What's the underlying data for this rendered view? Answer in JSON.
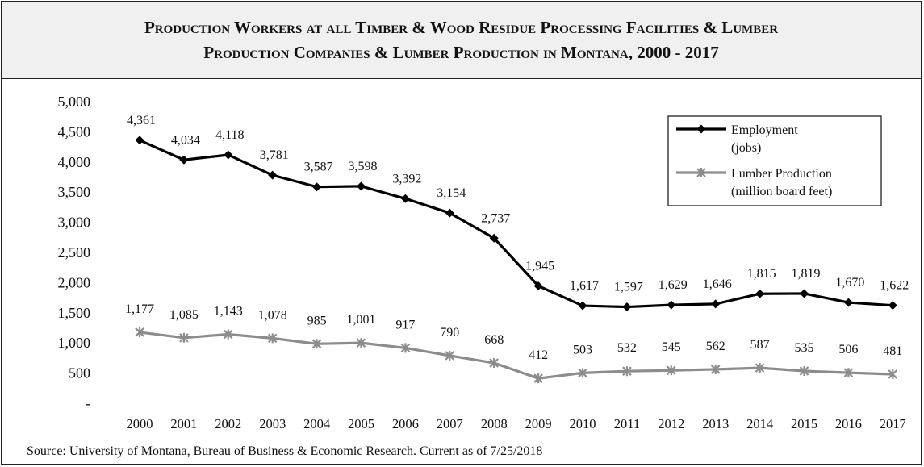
{
  "title_line1": "Production Workers at all Timber & Wood Residue Processing Facilities & Lumber",
  "title_line2": "Production Companies & Lumber Production in Montana, 2000 - 2017",
  "source": "Source: University of Montana, Bureau of Business & Economic Research.  Current as of 7/25/2018",
  "colors": {
    "employment": "#000000",
    "lumber": "#8c8c8c",
    "title_bg": "#f0f0f0"
  },
  "chart_data": {
    "type": "line",
    "title": "Production Workers at all Timber & Wood Residue Processing Facilities & Lumber Production Companies & Lumber Production in Montana, 2000 - 2017",
    "categories": [
      "2000",
      "2001",
      "2002",
      "2003",
      "2004",
      "2005",
      "2006",
      "2007",
      "2008",
      "2009",
      "2010",
      "2011",
      "2012",
      "2013",
      "2014",
      "2015",
      "2016",
      "2017"
    ],
    "ylim": [
      0,
      5000
    ],
    "ytick_labels": [
      "-",
      "500",
      "1,000",
      "1,500",
      "2,000",
      "2,500",
      "3,000",
      "3,500",
      "4,000",
      "4,500",
      "5,000"
    ],
    "ytick_values": [
      0,
      500,
      1000,
      1500,
      2000,
      2500,
      3000,
      3500,
      4000,
      4500,
      5000
    ],
    "grid": false,
    "legend_position": "top-right",
    "series": [
      {
        "name": "Employment (jobs)",
        "legend_lines": [
          "Employment",
          "(jobs)"
        ],
        "marker": "diamond",
        "values": [
          4361,
          4034,
          4118,
          3781,
          3587,
          3598,
          3392,
          3154,
          2737,
          1945,
          1617,
          1597,
          1629,
          1646,
          1815,
          1819,
          1670,
          1622
        ],
        "labels": [
          "4,361",
          "4,034",
          "4,118",
          "3,781",
          "3,587",
          "3,598",
          "3,392",
          "3,154",
          "2,737",
          "1,945",
          "1,617",
          "1,597",
          "1,629",
          "1,646",
          "1,815",
          "1,819",
          "1,670",
          "1,622"
        ]
      },
      {
        "name": "Lumber Production (million board feet)",
        "legend_lines": [
          "Lumber Production",
          "(million board feet)"
        ],
        "marker": "x-star",
        "values": [
          1177,
          1085,
          1143,
          1078,
          985,
          1001,
          917,
          790,
          668,
          412,
          503,
          532,
          545,
          562,
          587,
          535,
          506,
          481
        ],
        "labels": [
          "1,177",
          "1,085",
          "1,143",
          "1,078",
          "985",
          "1,001",
          "917",
          "790",
          "668",
          "412",
          "503",
          "532",
          "545",
          "562",
          "587",
          "535",
          "506",
          "481"
        ]
      }
    ]
  }
}
